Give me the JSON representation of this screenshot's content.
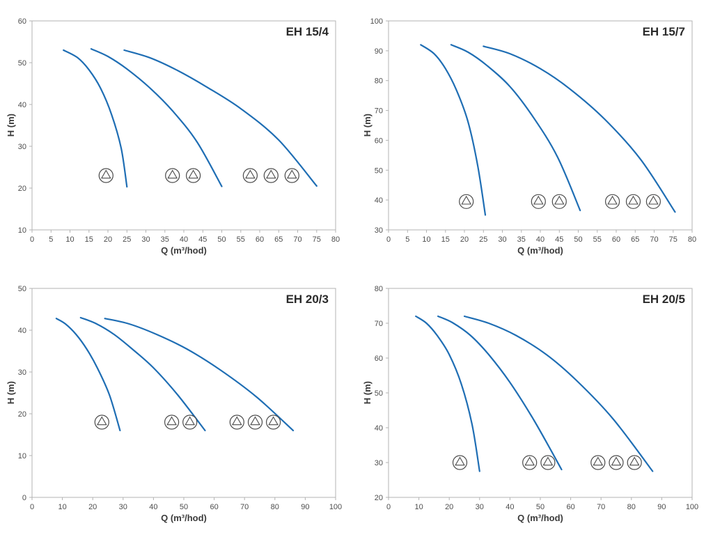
{
  "colors": {
    "curve": "#1f6eb4",
    "axis": "#b3b3b3",
    "tick_text": "#4d4d4d",
    "label_text": "#3b3b3b",
    "icon_stroke": "#4a4a4a"
  },
  "chart_data": [
    {
      "type": "line",
      "title": "EH 15/4",
      "xlabel": "Q (m³/hod)",
      "ylabel": "H (m)",
      "xlim": [
        0,
        80
      ],
      "ylim": [
        10,
        60
      ],
      "xticks": [
        0,
        5,
        10,
        15,
        20,
        25,
        30,
        35,
        40,
        45,
        50,
        55,
        60,
        65,
        70,
        75,
        80
      ],
      "yticks": [
        10,
        20,
        30,
        40,
        50,
        60
      ],
      "grid": false,
      "series": [
        {
          "name": "1 pump",
          "points": [
            [
              8.3,
              53
            ],
            [
              12,
              51.2
            ],
            [
              15,
              48.3
            ],
            [
              18,
              44
            ],
            [
              21,
              37.5
            ],
            [
              23.5,
              29.5
            ],
            [
              25,
              20.3
            ]
          ]
        },
        {
          "name": "2 pumps",
          "points": [
            [
              15.6,
              53.3
            ],
            [
              20,
              51.5
            ],
            [
              25,
              48.5
            ],
            [
              31,
              44
            ],
            [
              37,
              38.5
            ],
            [
              43.5,
              31
            ],
            [
              50,
              20.4
            ]
          ]
        },
        {
          "name": "3 pumps",
          "points": [
            [
              24.3,
              53
            ],
            [
              31,
              51.2
            ],
            [
              38,
              48.3
            ],
            [
              46,
              44.2
            ],
            [
              55,
              39
            ],
            [
              65,
              31.5
            ],
            [
              75,
              20.5
            ]
          ]
        }
      ],
      "pump_markers": [
        {
          "pumps": 1,
          "y": 23,
          "x": [
            19.5
          ]
        },
        {
          "pumps": 2,
          "y": 23,
          "x": [
            37,
            42.5
          ]
        },
        {
          "pumps": 3,
          "y": 23,
          "x": [
            57.5,
            63,
            68.5
          ]
        }
      ]
    },
    {
      "type": "line",
      "title": "EH 15/7",
      "xlabel": "Q (m³/hod)",
      "ylabel": "H (m)",
      "xlim": [
        0,
        80
      ],
      "ylim": [
        30,
        100
      ],
      "xticks": [
        0,
        5,
        10,
        15,
        20,
        25,
        30,
        35,
        40,
        45,
        50,
        55,
        60,
        65,
        70,
        75,
        80
      ],
      "yticks": [
        30,
        40,
        50,
        60,
        70,
        80,
        90,
        100
      ],
      "grid": false,
      "series": [
        {
          "name": "1 pump",
          "points": [
            [
              8.5,
              92
            ],
            [
              12,
              89
            ],
            [
              15,
              84
            ],
            [
              18,
              76.5
            ],
            [
              21,
              66
            ],
            [
              23.5,
              51.5
            ],
            [
              25.5,
              35
            ]
          ]
        },
        {
          "name": "2 pumps",
          "points": [
            [
              16.5,
              92
            ],
            [
              21,
              89.5
            ],
            [
              26,
              85
            ],
            [
              32,
              78
            ],
            [
              38,
              68
            ],
            [
              44.5,
              54.5
            ],
            [
              50.5,
              36.5
            ]
          ]
        },
        {
          "name": "3 pumps",
          "points": [
            [
              25,
              91.5
            ],
            [
              32,
              89
            ],
            [
              40,
              84
            ],
            [
              48,
              77
            ],
            [
              57,
              67
            ],
            [
              66.5,
              53.5
            ],
            [
              75.5,
              36
            ]
          ]
        }
      ],
      "pump_markers": [
        {
          "pumps": 1,
          "y": 39.5,
          "x": [
            20.5
          ]
        },
        {
          "pumps": 2,
          "y": 39.5,
          "x": [
            39.5,
            45
          ]
        },
        {
          "pumps": 3,
          "y": 39.5,
          "x": [
            59,
            64.5,
            69.8
          ]
        }
      ]
    },
    {
      "type": "line",
      "title": "EH 20/3",
      "xlabel": "Q (m³/hod)",
      "ylabel": "H (m)",
      "xlim": [
        0,
        100
      ],
      "ylim": [
        0,
        50
      ],
      "xticks": [
        0,
        10,
        20,
        30,
        40,
        50,
        60,
        70,
        80,
        90,
        100
      ],
      "yticks": [
        0,
        10,
        20,
        30,
        40,
        50
      ],
      "grid": false,
      "series": [
        {
          "name": "1 pump",
          "points": [
            [
              8,
              42.8
            ],
            [
              11,
              41.5
            ],
            [
              14.5,
              39
            ],
            [
              18,
              35.5
            ],
            [
              21.5,
              31
            ],
            [
              25.5,
              24.5
            ],
            [
              29,
              16
            ]
          ]
        },
        {
          "name": "2 pumps",
          "points": [
            [
              16,
              43
            ],
            [
              21,
              41.6
            ],
            [
              27,
              39
            ],
            [
              33,
              35.5
            ],
            [
              40,
              31
            ],
            [
              48,
              24.5
            ],
            [
              57,
              16
            ]
          ]
        },
        {
          "name": "3 pumps",
          "points": [
            [
              24,
              42.8
            ],
            [
              32,
              41.5
            ],
            [
              41,
              39
            ],
            [
              51,
              35.5
            ],
            [
              62,
              30.5
            ],
            [
              74,
              24
            ],
            [
              86,
              16
            ]
          ]
        }
      ],
      "pump_markers": [
        {
          "pumps": 1,
          "y": 18,
          "x": [
            23
          ]
        },
        {
          "pumps": 2,
          "y": 18,
          "x": [
            46,
            52
          ]
        },
        {
          "pumps": 3,
          "y": 18,
          "x": [
            67.5,
            73.5,
            79.5
          ]
        }
      ]
    },
    {
      "type": "line",
      "title": "EH 20/5",
      "xlabel": "Q (m³/hod)",
      "ylabel": "H (m)",
      "xlim": [
        0,
        100
      ],
      "ylim": [
        20,
        80
      ],
      "xticks": [
        0,
        10,
        20,
        30,
        40,
        50,
        60,
        70,
        80,
        90,
        100
      ],
      "yticks": [
        20,
        30,
        40,
        50,
        60,
        70,
        80
      ],
      "grid": false,
      "series": [
        {
          "name": "1 pump",
          "points": [
            [
              9,
              72
            ],
            [
              12.5,
              70
            ],
            [
              16,
              66.5
            ],
            [
              20,
              61
            ],
            [
              24,
              52.5
            ],
            [
              27.5,
              41
            ],
            [
              30,
              27.5
            ]
          ]
        },
        {
          "name": "2 pumps",
          "points": [
            [
              16.3,
              72
            ],
            [
              21,
              70.2
            ],
            [
              27,
              66.5
            ],
            [
              33,
              61
            ],
            [
              40,
              53
            ],
            [
              48,
              42
            ],
            [
              57,
              28
            ]
          ]
        },
        {
          "name": "3 pumps",
          "points": [
            [
              25,
              72
            ],
            [
              33,
              70
            ],
            [
              42,
              66.5
            ],
            [
              52,
              61
            ],
            [
              62,
              53.5
            ],
            [
              74,
              42.5
            ],
            [
              87,
              27.5
            ]
          ]
        }
      ],
      "pump_markers": [
        {
          "pumps": 1,
          "y": 30,
          "x": [
            23.5
          ]
        },
        {
          "pumps": 2,
          "y": 30,
          "x": [
            46.5,
            52.5
          ]
        },
        {
          "pumps": 3,
          "y": 30,
          "x": [
            69,
            75,
            81
          ]
        }
      ]
    }
  ]
}
